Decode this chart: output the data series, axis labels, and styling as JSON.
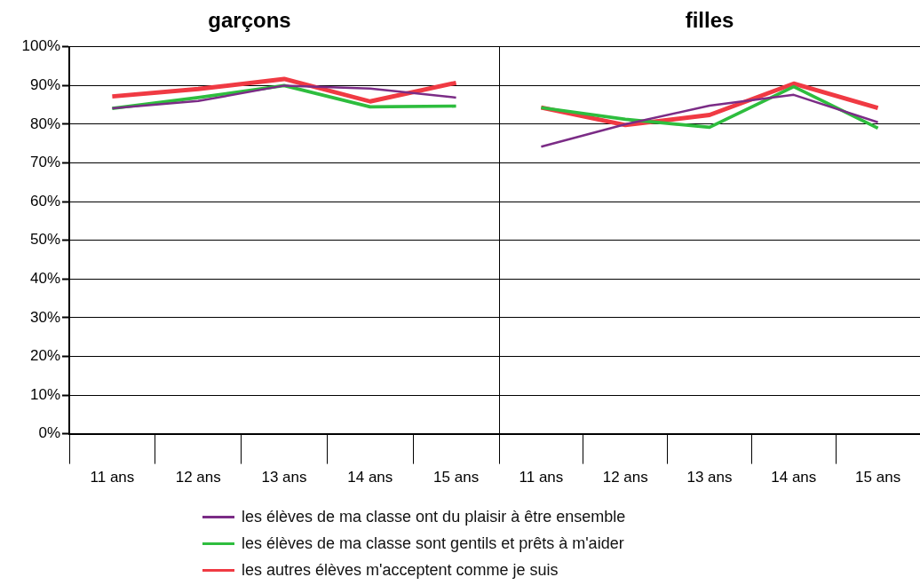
{
  "chart_data": [
    {
      "type": "line",
      "title": "garçons",
      "categories": [
        "11 ans",
        "12 ans",
        "13 ans",
        "14 ans",
        "15 ans"
      ],
      "ylim": [
        0,
        100
      ],
      "yticks": [
        {
          "value": 0,
          "label": "0%"
        },
        {
          "value": 10,
          "label": "10%"
        },
        {
          "value": 20,
          "label": "20%"
        },
        {
          "value": 30,
          "label": "30%"
        },
        {
          "value": 40,
          "label": "40%"
        },
        {
          "value": 50,
          "label": "50%"
        },
        {
          "value": 60,
          "label": "60%"
        },
        {
          "value": 70,
          "label": "70%"
        },
        {
          "value": 80,
          "label": "80%"
        },
        {
          "value": 90,
          "label": "90%"
        },
        {
          "value": 100,
          "label": "100%"
        }
      ],
      "grid": "y",
      "legend": "bottom",
      "marker": "none",
      "series": [
        {
          "name": "les élèves de ma classe ont du plaisir à être ensemble",
          "color": "#7b2c86",
          "values": [
            84.1,
            86.0,
            90.0,
            89.2,
            86.9
          ]
        },
        {
          "name": "les élèves de ma classe sont gentils et prêts à m'aider",
          "color": "#2ebd3e",
          "values": [
            84.1,
            86.9,
            90.0,
            84.5,
            84.7
          ]
        },
        {
          "name": "les autres élèves m'acceptent comme je suis",
          "color": "#f03a43",
          "values": [
            87.2,
            89.1,
            91.7,
            85.9,
            90.7
          ]
        }
      ]
    },
    {
      "type": "line",
      "title": "filles",
      "categories": [
        "11 ans",
        "12 ans",
        "13 ans",
        "14 ans",
        "15 ans"
      ],
      "ylim": [
        0,
        100
      ],
      "yticks": [
        0,
        10,
        20,
        30,
        40,
        50,
        60,
        70,
        80,
        90,
        100
      ],
      "tick_labels": "x",
      "grid": "y",
      "marker": "none",
      "series": [
        {
          "color": "#7b2c86",
          "values": [
            74.2,
            80.0,
            84.8,
            87.6,
            80.5
          ]
        },
        {
          "color": "#2ebd3e",
          "values": [
            84.3,
            81.3,
            79.2,
            89.7,
            79.0
          ]
        },
        {
          "color": "#f03a43",
          "values": [
            84.3,
            79.8,
            82.4,
            90.5,
            84.2
          ]
        }
      ]
    }
  ]
}
